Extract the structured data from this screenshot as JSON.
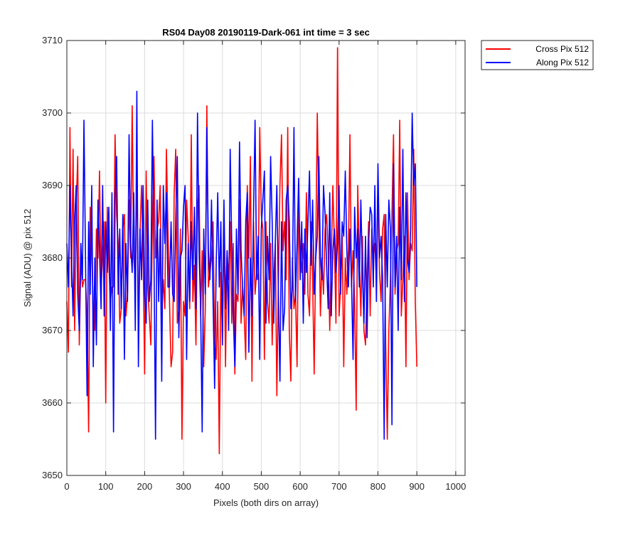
{
  "chart_data": {
    "type": "line",
    "title": "RS04 Day08 20190119-Dark-061 int time = 3 sec",
    "xlabel": "Pixels (both dirs on array)",
    "ylabel": "Signal (ADU) @ pix 512",
    "xlim": [
      0,
      1024
    ],
    "ylim": [
      3650,
      3710
    ],
    "x_ticks": [
      "0",
      "100",
      "200",
      "300",
      "400",
      "500",
      "600",
      "700",
      "800",
      "900",
      "1000"
    ],
    "y_ticks": [
      "3650",
      "3660",
      "3670",
      "3680",
      "3690",
      "3700",
      "3710"
    ],
    "grid": true,
    "legend_position": "outside-top-right",
    "x_step": 4,
    "series": [
      {
        "name": "Cross Pix 512",
        "color": "#ff0000",
        "values": [
          3674,
          3667,
          3698,
          3676,
          3695,
          3670,
          3687,
          3694,
          3668,
          3680,
          3676,
          3677,
          3677,
          3672,
          3656,
          3687,
          3681,
          3673,
          3670,
          3684,
          3680,
          3692,
          3676,
          3680,
          3685,
          3660,
          3687,
          3679,
          3674,
          3676,
          3676,
          3697,
          3686,
          3682,
          3671,
          3673,
          3684,
          3686,
          3672,
          3675,
          3688,
          3680,
          3701,
          3680,
          3677,
          3693,
          3669,
          3683,
          3690,
          3681,
          3664,
          3692,
          3676,
          3672,
          3668,
          3685,
          3694,
          3680,
          3684,
          3685,
          3690,
          3672,
          3677,
          3673,
          3695,
          3684,
          3674,
          3665,
          3667,
          3689,
          3695,
          3671,
          3673,
          3684,
          3655,
          3674,
          3672,
          3688,
          3683,
          3673,
          3697,
          3674,
          3679,
          3668,
          3687,
          3690,
          3672,
          3681,
          3665,
          3673,
          3701,
          3676,
          3678,
          3680,
          3685,
          3669,
          3666,
          3674,
          3653,
          3678,
          3669,
          3685,
          3665,
          3681,
          3677,
          3685,
          3671,
          3682,
          3664,
          3675,
          3674,
          3688,
          3671,
          3676,
          3672,
          3666,
          3690,
          3680,
          3694,
          3663,
          3685,
          3675,
          3678,
          3677,
          3698,
          3686,
          3684,
          3666,
          3685,
          3674,
          3671,
          3682,
          3668,
          3677,
          3682,
          3661,
          3677,
          3690,
          3697,
          3681,
          3685,
          3677,
          3698,
          3670,
          3663,
          3680,
          3673,
          3675,
          3665,
          3687,
          3681,
          3678,
          3682,
          3675,
          3689,
          3675,
          3672,
          3685,
          3677,
          3664,
          3681,
          3700,
          3686,
          3672,
          3680,
          3675,
          3684,
          3686,
          3681,
          3670,
          3680,
          3690,
          3682,
          3671,
          3709,
          3672,
          3676,
          3683,
          3665,
          3680,
          3675,
          3681,
          3697,
          3676,
          3681,
          3674,
          3659,
          3690,
          3680,
          3672,
          3683,
          3670,
          3668,
          3677,
          3685,
          3672,
          3684,
          3680,
          3682,
          3677,
          3690,
          3678,
          3674,
          3684,
          3686,
          3668,
          3655,
          3670,
          3677,
          3686,
          3697,
          3675,
          3681,
          3682,
          3699,
          3672,
          3677,
          3683,
          3665,
          3689,
          3677,
          3682,
          3681,
          3695,
          3674,
          3665
        ]
      },
      {
        "name": "Along Pix 512",
        "color": "#0000ff",
        "values": [
          3682,
          3676,
          3690,
          3680,
          3672,
          3685,
          3690,
          3675,
          3670,
          3682,
          3677,
          3699,
          3680,
          3661,
          3685,
          3675,
          3690,
          3665,
          3680,
          3668,
          3688,
          3681,
          3673,
          3690,
          3672,
          3685,
          3678,
          3687,
          3670,
          3689,
          3656,
          3688,
          3694,
          3675,
          3684,
          3673,
          3686,
          3666,
          3682,
          3674,
          3697,
          3682,
          3678,
          3689,
          3670,
          3703,
          3665,
          3684,
          3677,
          3690,
          3675,
          3671,
          3688,
          3674,
          3677,
          3699,
          3681,
          3655,
          3688,
          3674,
          3684,
          3663,
          3690,
          3682,
          3689,
          3676,
          3676,
          3685,
          3675,
          3674,
          3685,
          3694,
          3669,
          3680,
          3681,
          3687,
          3690,
          3666,
          3682,
          3674,
          3685,
          3677,
          3687,
          3673,
          3700,
          3681,
          3673,
          3656,
          3684,
          3675,
          3698,
          3681,
          3677,
          3688,
          3674,
          3662,
          3679,
          3689,
          3676,
          3685,
          3668,
          3688,
          3673,
          3681,
          3670,
          3695,
          3682,
          3672,
          3665,
          3684,
          3675,
          3696,
          3681,
          3676,
          3672,
          3685,
          3689,
          3667,
          3680,
          3672,
          3686,
          3699,
          3677,
          3683,
          3666,
          3684,
          3688,
          3692,
          3671,
          3683,
          3677,
          3694,
          3685,
          3671,
          3682,
          3690,
          3675,
          3663,
          3685,
          3670,
          3673,
          3688,
          3690,
          3685,
          3673,
          3676,
          3698,
          3674,
          3682,
          3691,
          3677,
          3685,
          3671,
          3684,
          3678,
          3685,
          3692,
          3679,
          3688,
          3675,
          3680,
          3683,
          3694,
          3680,
          3677,
          3690,
          3686,
          3679,
          3673,
          3689,
          3672,
          3681,
          3684,
          3678,
          3682,
          3690,
          3675,
          3685,
          3683,
          3692,
          3681,
          3676,
          3684,
          3677,
          3666,
          3687,
          3680,
          3684,
          3676,
          3688,
          3678,
          3671,
          3683,
          3669,
          3682,
          3687,
          3686,
          3676,
          3690,
          3674,
          3693,
          3680,
          3683,
          3677,
          3655,
          3686,
          3676,
          3688,
          3684,
          3657,
          3693,
          3676,
          3683,
          3670,
          3687,
          3677,
          3695,
          3674,
          3689,
          3680,
          3678,
          3684,
          3700,
          3690,
          3693,
          3676
        ]
      }
    ]
  }
}
